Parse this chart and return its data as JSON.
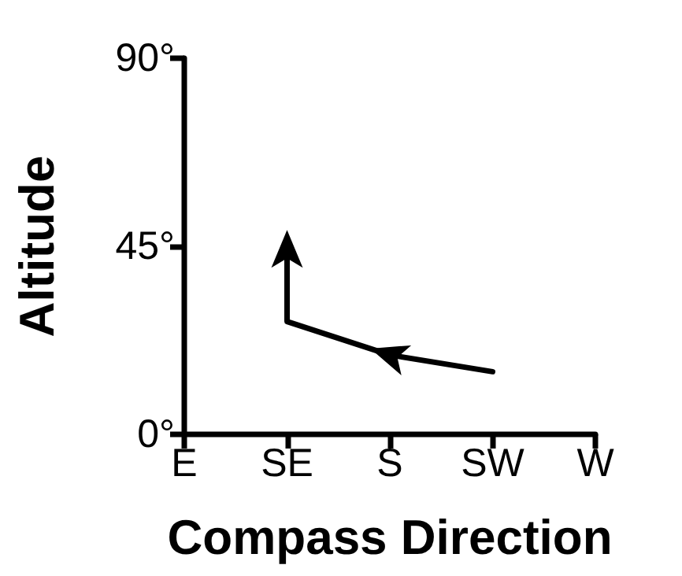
{
  "chart_data": {
    "type": "line",
    "xlabel": "Compass Direction",
    "ylabel": "Altitude",
    "categories": [
      "E",
      "SE",
      "S",
      "SW",
      "W"
    ],
    "ylim": [
      0,
      90
    ],
    "yticks": [
      {
        "value": 0,
        "label": "0°"
      },
      {
        "value": 45,
        "label": "45°"
      },
      {
        "value": 90,
        "label": "90°"
      }
    ],
    "series": [
      {
        "color": "#000000",
        "x": [
          "SW",
          "S",
          "SE",
          "SE"
        ],
        "values": [
          15,
          19,
          27,
          44
        ]
      }
    ]
  }
}
